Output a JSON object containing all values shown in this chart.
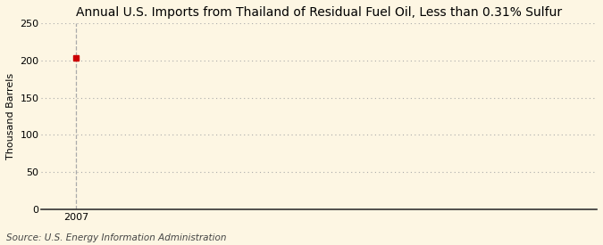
{
  "title": "Annual U.S. Imports from Thailand of Residual Fuel Oil, Less than 0.31% Sulfur",
  "ylabel": "Thousand Barrels",
  "source": "Source: U.S. Energy Information Administration",
  "x_data": [
    2007
  ],
  "y_data": [
    204
  ],
  "marker_color": "#cc0000",
  "marker_size": 4,
  "ylim": [
    0,
    250
  ],
  "yticks": [
    0,
    50,
    100,
    150,
    200,
    250
  ],
  "xlim": [
    2006.4,
    2016
  ],
  "xticks": [
    2007
  ],
  "background_color": "#fdf6e3",
  "grid_color": "#aaaaaa",
  "vline_color": "#aaaaaa",
  "title_fontsize": 10,
  "label_fontsize": 8,
  "tick_fontsize": 8,
  "source_fontsize": 7.5
}
